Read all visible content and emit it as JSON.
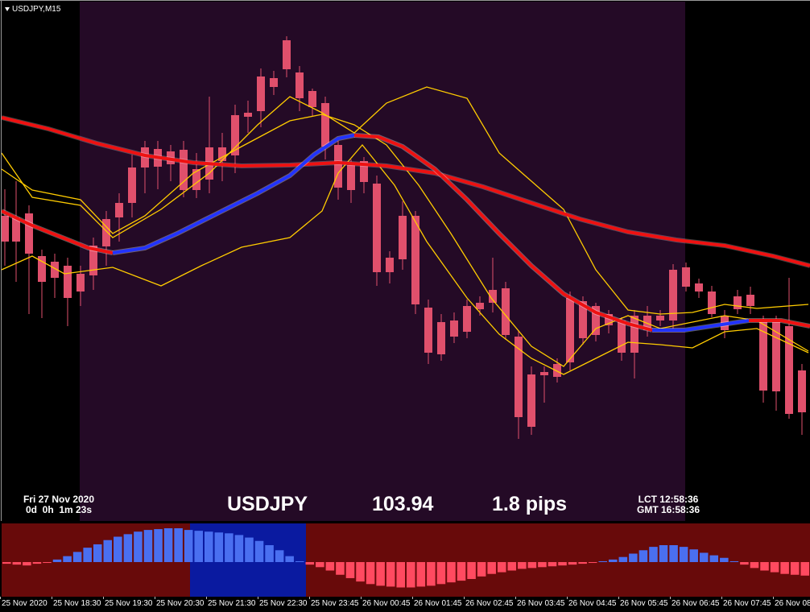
{
  "chart": {
    "title": "USDJPY,M15",
    "colors": {
      "background": "#000000",
      "session_band": "#240a26",
      "bull_candle": "#4a6ff0",
      "bear_candle": "#e0506c",
      "ma_red": "#ee1111",
      "ma_blue": "#2233ff",
      "band_yellow": "#ffcc00",
      "osc_bg": "#680a0a",
      "osc_highlight": "#0a1aa0",
      "osc_pos_bar": "#4a6ff0",
      "osc_neg_bar": "#ff4a60"
    }
  },
  "info": {
    "date": "Fri 27 Nov 2020",
    "countdown": "0d  0h  1m 23s",
    "symbol": "USDJPY",
    "price": "103.94",
    "spread": "1.8 pips",
    "lct": "LCT 12:58:36",
    "gmt": "GMT 16:58:36"
  },
  "time_axis": {
    "labels": [
      "25 Nov 2020",
      "25 Nov 18:30",
      "25 Nov 19:30",
      "25 Nov 20:30",
      "25 Nov 21:30",
      "25 Nov 22:30",
      "25 Nov 23:45",
      "26 Nov 00:45",
      "26 Nov 01:45",
      "26 Nov 02:45",
      "26 Nov 03:45",
      "26 Nov 04:45",
      "26 Nov 05:45",
      "26 Nov 06:45",
      "26 Nov 07:45",
      "26 Nov 08"
    ]
  }
}
